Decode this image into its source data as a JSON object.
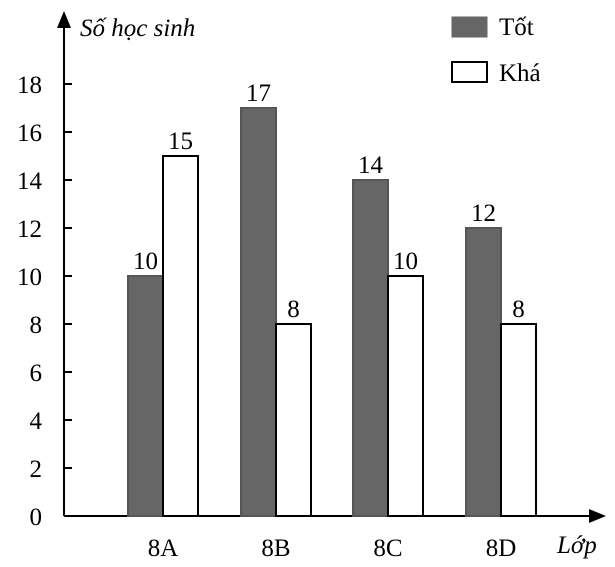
{
  "chart_data": {
    "type": "bar",
    "categories": [
      "8A",
      "8B",
      "8C",
      "8D"
    ],
    "series": [
      {
        "name": "Tốt",
        "values": [
          10,
          17,
          14,
          12
        ],
        "color": "#666666"
      },
      {
        "name": "Khá",
        "values": [
          15,
          8,
          10,
          8
        ],
        "color": "#ffffff"
      }
    ],
    "ylabel": "Số học sinh",
    "xlabel": "Lớp",
    "ylim": [
      0,
      18
    ],
    "yticks": [
      0,
      2,
      4,
      6,
      8,
      10,
      12,
      14,
      16,
      18
    ],
    "legend": "top-right",
    "grid": false
  }
}
